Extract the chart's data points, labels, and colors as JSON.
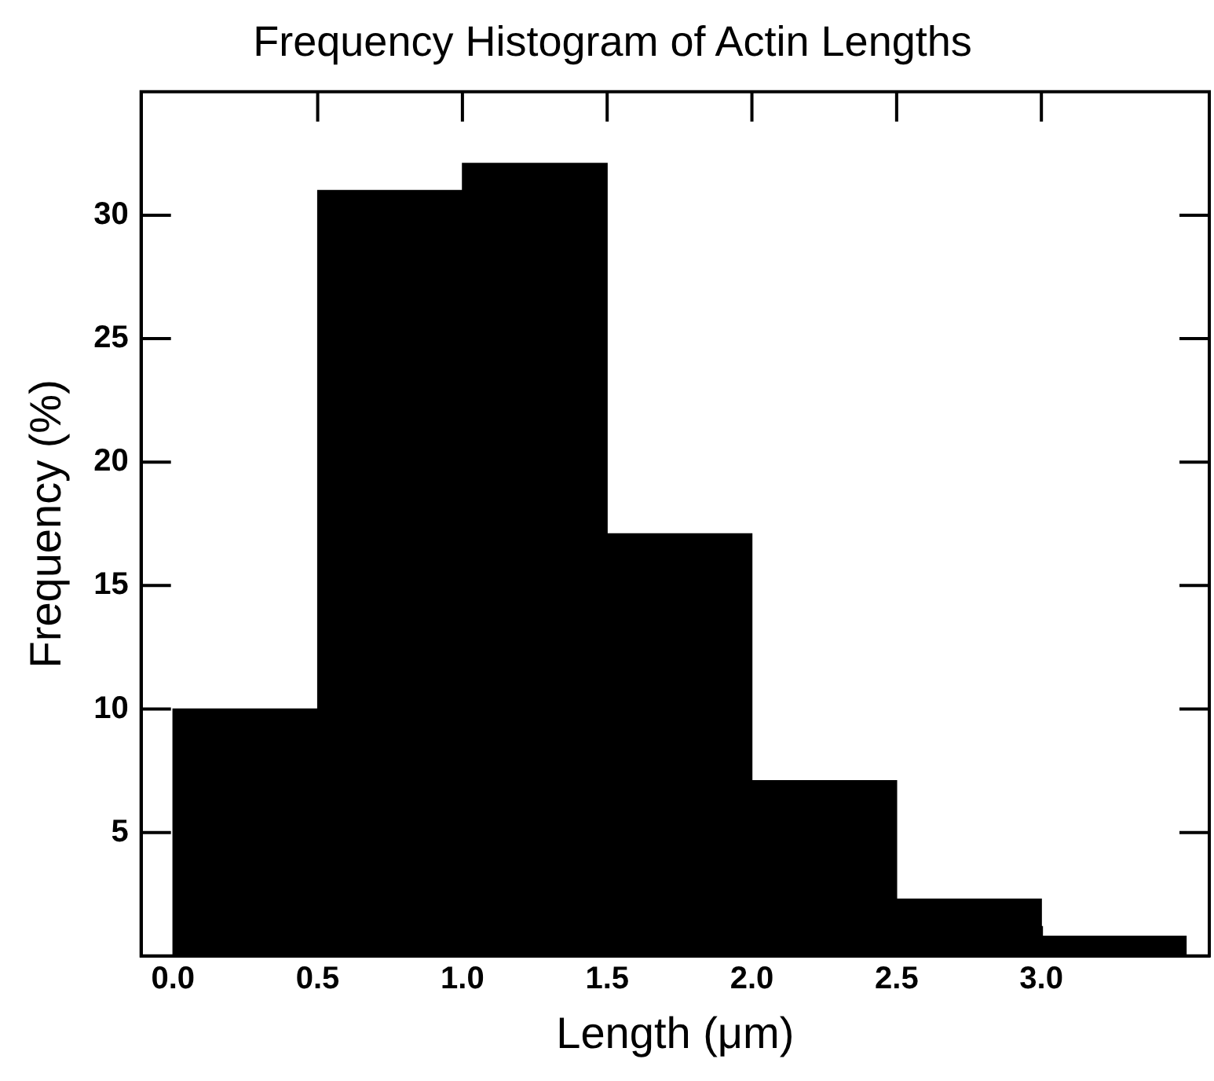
{
  "chart_data": {
    "type": "histogram",
    "title": "Frequency Histogram of Actin Lengths",
    "xlabel": "Length (μm)",
    "ylabel": "Frequency (%)",
    "bins": [
      0,
      0.5,
      1.0,
      1.5,
      2.0,
      2.5,
      3.0,
      3.5
    ],
    "values": [
      10,
      31,
      32.1,
      17.1,
      7.1,
      2.3,
      0.8
    ],
    "color": "#000000",
    "xlim": [
      -0.11,
      3.58
    ],
    "xticks": [
      {
        "value": 0,
        "label": "0.0"
      },
      {
        "value": 0.5,
        "label": "0.5"
      },
      {
        "value": 1,
        "label": "1.0"
      },
      {
        "value": 1.5,
        "label": "1.5"
      },
      {
        "value": 2,
        "label": "2.0"
      },
      {
        "value": 2.5,
        "label": "2.5"
      },
      {
        "value": 3,
        "label": "3.0"
      }
    ],
    "ylim": [
      0,
      35
    ],
    "yticks": [
      5,
      10,
      15,
      20,
      25,
      30
    ],
    "grid": false,
    "legend": false
  }
}
